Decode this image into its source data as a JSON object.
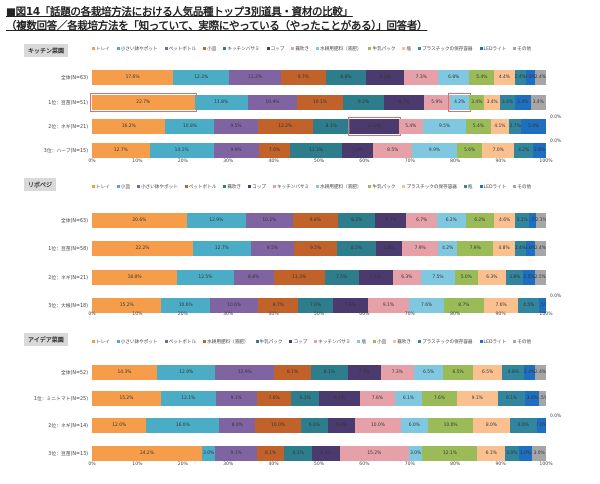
{
  "title_line1": "■図14「話題の各栽培方法における人気品種トップ3別道具・資材の比較」",
  "title_line2": "（複数回答／各栽培方法を「知っていて、実際にやっている（やったことがある）」回答者）",
  "colors": [
    "#f59d4a",
    "#4bacc6",
    "#8064a2",
    "#c0622a",
    "#2e7d8c",
    "#4b3a6e",
    "#e6a0a8",
    "#7fc8e0",
    "#9bbb59",
    "#fac090",
    "#31859c",
    "#1f6fc0",
    "#a6a6a6"
  ],
  "chart_data": [
    {
      "type": "bar",
      "stacked": "100%",
      "orientation": "horizontal",
      "title": "キッチン菜園",
      "legend": [
        "トレイ",
        "小さい鉢やポット",
        "ペットボトル",
        "小皿",
        "キッチンバサミ",
        "コップ",
        "霧吹き",
        "水耕用肥料（液肥）",
        "牛乳パック",
        "瓶",
        "プラスチックの保存容器",
        "LEDライト",
        "その他"
      ],
      "categories": [
        "全体(N=63)",
        "1位：豆苗(N=51)",
        "2位：ネギ(N=21)",
        "3位：ハーブ(N=15)"
      ],
      "values": [
        [
          17.6,
          12.2,
          11.2,
          9.7,
          8.8,
          8.3,
          7.3,
          6.8,
          5.4,
          4.4,
          2.4,
          2.0,
          2.4
        ],
        [
          22.7,
          11.8,
          10.9,
          10.1,
          9.2,
          8.7,
          5.9,
          4.2,
          3.4,
          3.4,
          3.4,
          3.4,
          3.4
        ],
        [
          16.2,
          10.8,
          9.5,
          12.2,
          8.1,
          10.8,
          5.4,
          9.5,
          5.4,
          4.1,
          2.7,
          5.4,
          0.0
        ],
        [
          12.7,
          14.1,
          9.9,
          7.0,
          11.3,
          7.0,
          8.5,
          9.9,
          5.6,
          7.0,
          4.2,
          2.8,
          0.0
        ]
      ],
      "highlights": [
        [
          1,
          0
        ],
        [
          1,
          7
        ],
        [
          2,
          5
        ]
      ],
      "xticks": [
        "0%",
        "10%",
        "20%",
        "30%",
        "40%",
        "50%",
        "60%",
        "70%",
        "80%",
        "90%",
        "100%"
      ],
      "xlim": [
        0,
        100
      ]
    },
    {
      "type": "bar",
      "stacked": "100%",
      "orientation": "horizontal",
      "title": "リボベジ",
      "legend": [
        "トレイ",
        "小皿",
        "小さい鉢やポット",
        "ペットボトル",
        "霧吹き",
        "コップ",
        "キッチンバサミ",
        "水耕用肥料（液肥）",
        "牛乳パック",
        "プラスチックの保存容器",
        "瓶",
        "LEDライト",
        "その他"
      ],
      "categories": [
        "全体(N=63)",
        "1位：豆苗(N=58)",
        "2位：ネギ(N=21)",
        "3位：大根(N=18)"
      ],
      "values": [
        [
          20.6,
          12.9,
          10.2,
          9.8,
          8.2,
          6.7,
          6.7,
          6.2,
          6.2,
          4.6,
          3.1,
          1.5,
          2.1
        ],
        [
          22.2,
          12.7,
          9.5,
          9.5,
          8.5,
          5.8,
          7.9,
          4.2,
          7.9,
          4.8,
          2.4,
          2.0,
          2.4
        ],
        [
          18.8,
          12.5,
          8.8,
          11.3,
          7.5,
          7.5,
          6.3,
          7.5,
          5.0,
          6.3,
          3.8,
          2.5,
          2.5
        ],
        [
          15.2,
          10.6,
          10.6,
          8.7,
          7.6,
          7.6,
          9.1,
          7.6,
          8.7,
          7.6,
          4.5,
          1.5,
          0.0
        ]
      ],
      "highlights": [],
      "xticks": [
        "0%",
        "10%",
        "20%",
        "30%",
        "40%",
        "50%",
        "60%",
        "70%",
        "80%",
        "90%",
        "100%"
      ],
      "xlim": [
        0,
        100
      ]
    },
    {
      "type": "bar",
      "stacked": "100%",
      "orientation": "horizontal",
      "title": "アイデア菜園",
      "legend": [
        "トレイ",
        "小さい鉢やポット",
        "ペットボトル",
        "水耕用肥料（液肥）",
        "牛乳パック",
        "コップ",
        "キッチンバサミ",
        "瓶",
        "小皿",
        "霧吹き",
        "プラスチックの保存容器",
        "LEDライト",
        "その他"
      ],
      "categories": [
        "全体(N=52)",
        "1位：ミニトマト(N=25)",
        "2位：ネギ(N=14)",
        "3位：豆苗(N=13)"
      ],
      "values": [
        [
          14.3,
          12.9,
          12.9,
          8.1,
          8.1,
          7.3,
          7.3,
          6.5,
          6.5,
          6.5,
          4.8,
          2.4,
          2.4
        ],
        [
          15.2,
          12.1,
          9.1,
          7.6,
          6.1,
          9.1,
          7.6,
          6.1,
          7.6,
          9.1,
          6.1,
          3.0,
          1.5
        ],
        [
          12.0,
          16.0,
          8.0,
          10.0,
          6.0,
          6.0,
          10.0,
          6.0,
          10.0,
          8.0,
          6.0,
          2.0,
          0.0
        ],
        [
          24.2,
          3.0,
          9.1,
          6.1,
          6.1,
          6.1,
          15.2,
          3.0,
          12.1,
          6.1,
          3.0,
          3.0,
          3.0
        ]
      ],
      "highlights": [],
      "xticks": [
        "0%",
        "10%",
        "20%",
        "30%",
        "40%",
        "50%",
        "60%",
        "70%",
        "80%",
        "90%",
        "100%"
      ],
      "xlim": [
        0,
        100
      ]
    }
  ]
}
